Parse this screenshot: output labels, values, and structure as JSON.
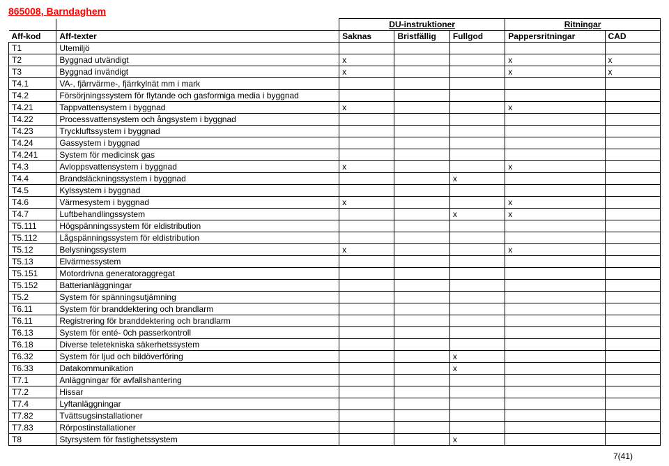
{
  "title": "865008, Barndaghem",
  "group_headers": {
    "du": "DU-instruktioner",
    "ritningar": "Ritningar"
  },
  "headers": {
    "kod": "Aff-kod",
    "text": "Aff-texter",
    "saknas": "Saknas",
    "brist": "Bristfällig",
    "full": "Fullgod",
    "papper": "Pappersritningar",
    "cad": "CAD"
  },
  "rows": [
    {
      "kod": "T1",
      "text": "Utemiljö",
      "saknas": "",
      "brist": "",
      "full": "",
      "papper": "",
      "cad": ""
    },
    {
      "kod": "T2",
      "text": "Byggnad utvändigt",
      "saknas": "x",
      "brist": "",
      "full": "",
      "papper": "x",
      "cad": "x"
    },
    {
      "kod": "T3",
      "text": "Byggnad invändigt",
      "saknas": "x",
      "brist": "",
      "full": "",
      "papper": "x",
      "cad": "x"
    },
    {
      "kod": "T4.1",
      "text": "VA-, fjärrvärme-, fjärrkylnät mm i mark",
      "saknas": "",
      "brist": "",
      "full": "",
      "papper": "",
      "cad": ""
    },
    {
      "kod": "T4.2",
      "text": "Försörjningssystem för flytande och gasformiga media i byggnad",
      "saknas": "",
      "brist": "",
      "full": "",
      "papper": "",
      "cad": ""
    },
    {
      "kod": "T4.21",
      "text": "Tappvattensystem i byggnad",
      "saknas": "x",
      "brist": "",
      "full": "",
      "papper": "x",
      "cad": ""
    },
    {
      "kod": "T4.22",
      "text": "Processvattensystem och ångsystem i byggnad",
      "saknas": "",
      "brist": "",
      "full": "",
      "papper": "",
      "cad": ""
    },
    {
      "kod": "T4.23",
      "text": "Tryckluftssystem i byggnad",
      "saknas": "",
      "brist": "",
      "full": "",
      "papper": "",
      "cad": ""
    },
    {
      "kod": "T4.24",
      "text": "Gassystem i byggnad",
      "saknas": "",
      "brist": "",
      "full": "",
      "papper": "",
      "cad": ""
    },
    {
      "kod": "T4.241",
      "text": "System för medicinsk gas",
      "saknas": "",
      "brist": "",
      "full": "",
      "papper": "",
      "cad": ""
    },
    {
      "kod": "T4.3",
      "text": "Avloppsvattensystem i byggnad",
      "saknas": "x",
      "brist": "",
      "full": "",
      "papper": "x",
      "cad": ""
    },
    {
      "kod": "T4.4",
      "text": "Brandsläckningssystem i byggnad",
      "saknas": "",
      "brist": "",
      "full": "x",
      "papper": "",
      "cad": ""
    },
    {
      "kod": "T4.5",
      "text": "Kylssystem i byggnad",
      "saknas": "",
      "brist": "",
      "full": "",
      "papper": "",
      "cad": ""
    },
    {
      "kod": "T4.6",
      "text": "Värmesystem i byggnad",
      "saknas": "x",
      "brist": "",
      "full": "",
      "papper": "x",
      "cad": ""
    },
    {
      "kod": "T4.7",
      "text": "Luftbehandlingssystem",
      "saknas": "",
      "brist": "",
      "full": "x",
      "papper": "x",
      "cad": ""
    },
    {
      "kod": "T5.111",
      "text": "Högspänningssystem för eldistribution",
      "saknas": "",
      "brist": "",
      "full": "",
      "papper": "",
      "cad": ""
    },
    {
      "kod": "T5.112",
      "text": "Lågspänningssystem för eldistribution",
      "saknas": "",
      "brist": "",
      "full": "",
      "papper": "",
      "cad": ""
    },
    {
      "kod": "T5.12",
      "text": "Belysningssystem",
      "saknas": "x",
      "brist": "",
      "full": "",
      "papper": "x",
      "cad": ""
    },
    {
      "kod": "T5.13",
      "text": "Elvärmessystem",
      "saknas": "",
      "brist": "",
      "full": "",
      "papper": "",
      "cad": ""
    },
    {
      "kod": "T5.151",
      "text": "Motordrivna generatoraggregat",
      "saknas": "",
      "brist": "",
      "full": "",
      "papper": "",
      "cad": ""
    },
    {
      "kod": "T5.152",
      "text": "Batterianläggningar",
      "saknas": "",
      "brist": "",
      "full": "",
      "papper": "",
      "cad": ""
    },
    {
      "kod": "T5.2",
      "text": "System för spänningsutjämning",
      "saknas": "",
      "brist": "",
      "full": "",
      "papper": "",
      "cad": ""
    },
    {
      "kod": "T6.11",
      "text": "System för branddektering och brandlarm",
      "saknas": "",
      "brist": "",
      "full": "",
      "papper": "",
      "cad": ""
    },
    {
      "kod": "T6.11",
      "text": "Registrering för branddektering och brandlarm",
      "saknas": "",
      "brist": "",
      "full": "",
      "papper": "",
      "cad": ""
    },
    {
      "kod": "T6.13",
      "text": "System för enté- 0ch passerkontroll",
      "saknas": "",
      "brist": "",
      "full": "",
      "papper": "",
      "cad": ""
    },
    {
      "kod": "T6.18",
      "text": "Diverse teletekniska säkerhetssystem",
      "saknas": "",
      "brist": "",
      "full": "",
      "papper": "",
      "cad": ""
    },
    {
      "kod": "T6.32",
      "text": "System för ljud och bildöverföring",
      "saknas": "",
      "brist": "",
      "full": "x",
      "papper": "",
      "cad": ""
    },
    {
      "kod": "T6.33",
      "text": "Datakommunikation",
      "saknas": "",
      "brist": "",
      "full": "x",
      "papper": "",
      "cad": ""
    },
    {
      "kod": "T7.1",
      "text": "Anläggningar för avfallshantering",
      "saknas": "",
      "brist": "",
      "full": "",
      "papper": "",
      "cad": ""
    },
    {
      "kod": "T7.2",
      "text": "Hissar",
      "saknas": "",
      "brist": "",
      "full": "",
      "papper": "",
      "cad": ""
    },
    {
      "kod": "T7.4",
      "text": "Lyftanläggningar",
      "saknas": "",
      "brist": "",
      "full": "",
      "papper": "",
      "cad": ""
    },
    {
      "kod": "T7.82",
      "text": "Tvättsugsinstallationer",
      "saknas": "",
      "brist": "",
      "full": "",
      "papper": "",
      "cad": ""
    },
    {
      "kod": "T7.83",
      "text": "Rörpostinstallationer",
      "saknas": "",
      "brist": "",
      "full": "",
      "papper": "",
      "cad": ""
    },
    {
      "kod": "T8",
      "text": "Styrsystem för fastighetssystem",
      "saknas": "",
      "brist": "",
      "full": "x",
      "papper": "",
      "cad": ""
    }
  ],
  "footer": "7(41)"
}
